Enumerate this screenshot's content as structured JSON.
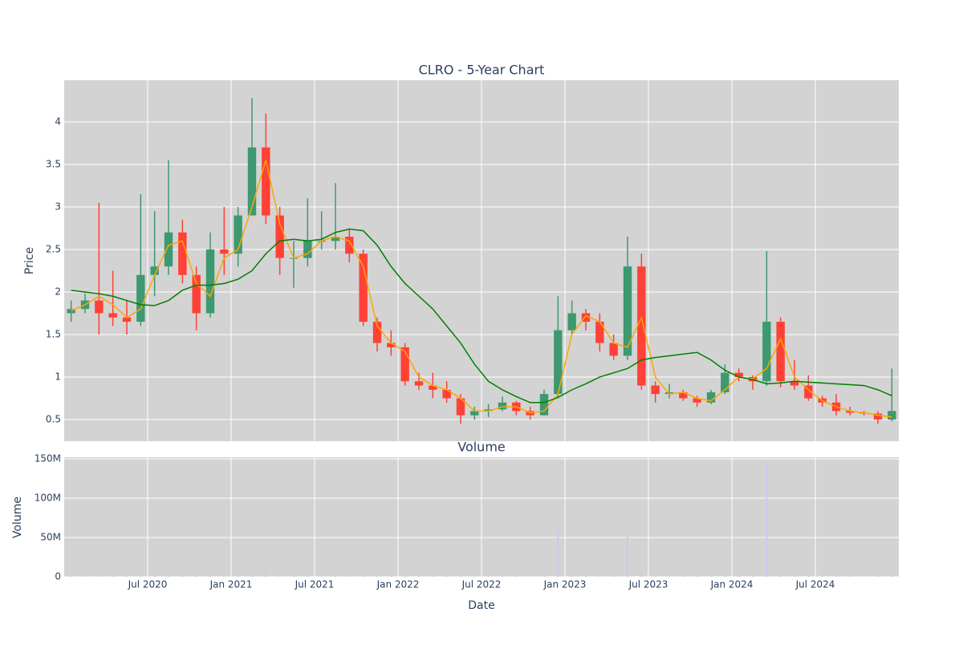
{
  "chart_data": [
    {
      "type": "candlestick",
      "title": "CLRO - 5-Year Chart",
      "y_label": "Price",
      "increasing_color": "#3d9970",
      "decreasing_color": "#ff4136",
      "x": [
        "2020-01",
        "2020-02",
        "2020-03",
        "2020-04",
        "2020-05",
        "2020-06",
        "2020-07",
        "2020-08",
        "2020-09",
        "2020-10",
        "2020-11",
        "2020-12",
        "2021-01",
        "2021-02",
        "2021-03",
        "2021-04",
        "2021-05",
        "2021-06",
        "2021-07",
        "2021-08",
        "2021-09",
        "2021-10",
        "2021-11",
        "2021-12",
        "2022-01",
        "2022-02",
        "2022-03",
        "2022-04",
        "2022-05",
        "2022-06",
        "2022-07",
        "2022-08",
        "2022-09",
        "2022-10",
        "2022-11",
        "2022-12",
        "2023-01",
        "2023-02",
        "2023-03",
        "2023-04",
        "2023-05",
        "2023-06",
        "2023-07",
        "2023-08",
        "2023-09",
        "2023-10",
        "2023-11",
        "2023-12",
        "2024-01",
        "2024-02",
        "2024-03",
        "2024-04",
        "2024-05",
        "2024-06",
        "2024-07",
        "2024-08",
        "2024-09",
        "2024-10",
        "2024-11",
        "2024-12"
      ],
      "open": [
        1.75,
        1.8,
        1.9,
        1.75,
        1.7,
        1.65,
        2.2,
        2.3,
        2.7,
        2.2,
        1.75,
        2.5,
        2.45,
        2.9,
        3.7,
        2.9,
        2.4,
        2.4,
        2.6,
        2.6,
        2.65,
        2.45,
        1.65,
        1.4,
        1.35,
        0.95,
        0.9,
        0.85,
        0.75,
        0.55,
        0.6,
        0.62,
        0.7,
        0.6,
        0.55,
        0.8,
        1.55,
        1.75,
        1.65,
        1.4,
        1.25,
        2.3,
        0.9,
        0.8,
        0.82,
        0.75,
        0.7,
        0.82,
        1.05,
        1.0,
        0.95,
        1.65,
        0.95,
        0.9,
        0.75,
        0.7,
        0.6,
        0.58,
        0.57,
        0.5
      ],
      "high": [
        1.9,
        1.98,
        3.05,
        2.25,
        1.9,
        3.15,
        2.95,
        3.55,
        2.85,
        2.3,
        2.7,
        3.0,
        3.0,
        4.28,
        4.1,
        3.0,
        2.6,
        3.1,
        2.95,
        3.28,
        2.75,
        2.5,
        1.7,
        1.55,
        1.4,
        1.05,
        1.05,
        0.95,
        0.8,
        0.65,
        0.68,
        0.77,
        0.72,
        0.65,
        0.85,
        1.95,
        1.9,
        1.8,
        1.75,
        1.5,
        2.65,
        2.45,
        0.95,
        0.92,
        0.85,
        0.78,
        0.85,
        1.15,
        1.1,
        1.02,
        2.48,
        1.7,
        1.2,
        1.02,
        0.78,
        0.8,
        0.65,
        0.6,
        0.6,
        1.1
      ],
      "low": [
        1.65,
        1.75,
        1.5,
        1.6,
        1.5,
        1.6,
        1.95,
        2.2,
        2.1,
        1.55,
        1.7,
        2.2,
        2.3,
        2.9,
        2.8,
        2.2,
        2.05,
        2.3,
        2.5,
        2.5,
        2.35,
        1.6,
        1.3,
        1.25,
        0.9,
        0.85,
        0.75,
        0.7,
        0.45,
        0.5,
        0.53,
        0.6,
        0.55,
        0.5,
        0.55,
        0.75,
        1.5,
        1.55,
        1.3,
        1.2,
        1.2,
        0.85,
        0.7,
        0.75,
        0.72,
        0.65,
        0.68,
        0.8,
        0.95,
        0.85,
        0.9,
        0.88,
        0.85,
        0.72,
        0.65,
        0.55,
        0.55,
        0.55,
        0.45,
        0.48
      ],
      "close": [
        1.8,
        1.9,
        1.75,
        1.7,
        1.65,
        2.2,
        2.3,
        2.7,
        2.2,
        1.75,
        2.5,
        2.45,
        2.9,
        3.7,
        2.9,
        2.4,
        2.4,
        2.6,
        2.6,
        2.65,
        2.45,
        1.65,
        1.4,
        1.35,
        0.95,
        0.9,
        0.85,
        0.75,
        0.55,
        0.6,
        0.62,
        0.7,
        0.6,
        0.55,
        0.8,
        1.55,
        1.75,
        1.65,
        1.4,
        1.25,
        2.3,
        0.9,
        0.8,
        0.82,
        0.75,
        0.7,
        0.82,
        1.05,
        1.0,
        0.95,
        1.65,
        0.95,
        0.9,
        0.75,
        0.7,
        0.6,
        0.58,
        0.57,
        0.5,
        0.6
      ],
      "overlays": [
        {
          "color": "#ffa500",
          "values": [
            1.78,
            1.85,
            1.95,
            1.85,
            1.7,
            1.8,
            2.2,
            2.55,
            2.6,
            2.1,
            1.95,
            2.4,
            2.5,
            3.0,
            3.55,
            2.8,
            2.4,
            2.45,
            2.6,
            2.65,
            2.6,
            2.3,
            1.6,
            1.4,
            1.3,
            1.0,
            0.9,
            0.85,
            0.75,
            0.6,
            0.6,
            0.65,
            0.65,
            0.58,
            0.6,
            0.8,
            1.5,
            1.72,
            1.65,
            1.4,
            1.35,
            1.7,
            1.0,
            0.8,
            0.82,
            0.75,
            0.72,
            0.85,
            1.0,
            0.98,
            1.1,
            1.45,
            1.0,
            0.85,
            0.72,
            0.65,
            0.6,
            0.58,
            0.55,
            0.53
          ]
        },
        {
          "color": "#008000",
          "values": [
            2.02,
            2.0,
            1.98,
            1.95,
            1.9,
            1.85,
            1.84,
            1.9,
            2.02,
            2.08,
            2.08,
            2.1,
            2.15,
            2.25,
            2.45,
            2.6,
            2.62,
            2.6,
            2.62,
            2.7,
            2.74,
            2.72,
            2.55,
            2.3,
            2.1,
            1.95,
            1.8,
            1.6,
            1.4,
            1.15,
            0.95,
            0.85,
            0.77,
            0.7,
            0.7,
            0.76,
            0.85,
            0.92,
            1.0,
            1.05,
            1.1,
            1.2,
            1.23,
            1.25,
            1.27,
            1.29,
            1.2,
            1.08,
            1.0,
            0.97,
            0.92,
            0.93,
            0.95,
            0.94,
            0.93,
            0.92,
            0.91,
            0.9,
            0.85,
            0.78
          ]
        }
      ],
      "xlim": [
        "2020-01",
        "2025-01"
      ],
      "ylim": [
        0.245,
        4.49
      ],
      "yticks": [
        0.5,
        1,
        1.5,
        2,
        2.5,
        3,
        3.5,
        4
      ],
      "grid": true
    },
    {
      "type": "bar",
      "title": "Volume",
      "y_label": "Volume",
      "x_label": "Date",
      "color": "#c8c8f0",
      "x": [
        "2020-01",
        "2020-02",
        "2020-03",
        "2020-04",
        "2020-05",
        "2020-06",
        "2020-07",
        "2020-08",
        "2020-09",
        "2020-10",
        "2020-11",
        "2020-12",
        "2021-01",
        "2021-02",
        "2021-03",
        "2021-04",
        "2021-05",
        "2021-06",
        "2021-07",
        "2021-08",
        "2021-09",
        "2021-10",
        "2021-11",
        "2021-12",
        "2022-01",
        "2022-02",
        "2022-03",
        "2022-04",
        "2022-05",
        "2022-06",
        "2022-07",
        "2022-08",
        "2022-09",
        "2022-10",
        "2022-11",
        "2022-12",
        "2023-01",
        "2023-02",
        "2023-03",
        "2023-04",
        "2023-05",
        "2023-06",
        "2023-07",
        "2023-08",
        "2023-09",
        "2023-10",
        "2023-11",
        "2023-12",
        "2024-01",
        "2024-02",
        "2024-03",
        "2024-04",
        "2024-05",
        "2024-06",
        "2024-07",
        "2024-08",
        "2024-09",
        "2024-10",
        "2024-11",
        "2024-12"
      ],
      "values": [
        1500000,
        1200000,
        2500000,
        1500000,
        1000000,
        2000000,
        1800000,
        2200000,
        1500000,
        1200000,
        1800000,
        1500000,
        2000000,
        4000000,
        6000000,
        2000000,
        1500000,
        1800000,
        1500000,
        2000000,
        1200000,
        1500000,
        1000000,
        800000,
        900000,
        700000,
        800000,
        600000,
        700000,
        500000,
        500000,
        600000,
        500000,
        400000,
        800000,
        63000000,
        3000000,
        2000000,
        1500000,
        1000000,
        55000000,
        5000000,
        1000000,
        800000,
        600000,
        500000,
        600000,
        1500000,
        1000000,
        800000,
        145000000,
        3000000,
        1500000,
        1000000,
        800000,
        700000,
        600000,
        500000,
        1200000,
        1500000
      ],
      "xlim": [
        "2020-01",
        "2025-01"
      ],
      "xticks": [
        {
          "value": "2020-07",
          "label": "Jul 2020"
        },
        {
          "value": "2021-01",
          "label": "Jan 2021"
        },
        {
          "value": "2021-07",
          "label": "Jul 2021"
        },
        {
          "value": "2022-01",
          "label": "Jan 2022"
        },
        {
          "value": "2022-07",
          "label": "Jul 2022"
        },
        {
          "value": "2023-01",
          "label": "Jan 2023"
        },
        {
          "value": "2023-07",
          "label": "Jul 2023"
        },
        {
          "value": "2024-01",
          "label": "Jan 2024"
        },
        {
          "value": "2024-07",
          "label": "Jul 2024"
        }
      ],
      "ylim": [
        0,
        152000000
      ],
      "yticks": [
        0,
        {
          "value": 50000000,
          "label": "50M"
        },
        {
          "value": 100000000,
          "label": "100M"
        },
        {
          "value": 150000000,
          "label": "150M"
        }
      ],
      "grid": true
    }
  ]
}
